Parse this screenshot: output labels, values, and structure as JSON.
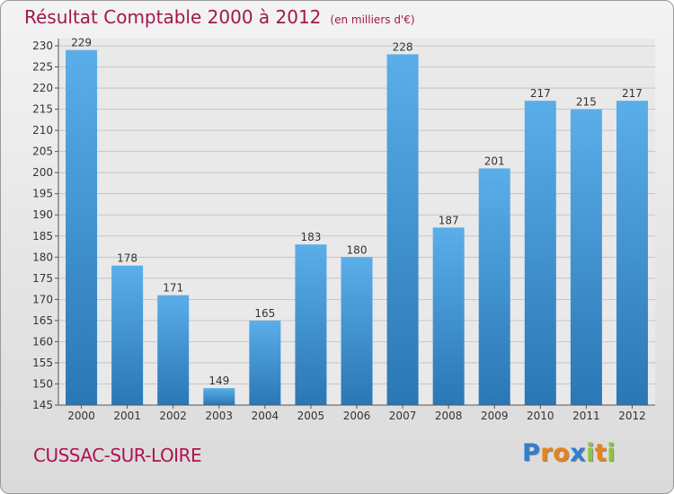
{
  "title": "Résultat Comptable 2000 à 2012",
  "subtitle": "(en milliers d'€)",
  "place": "CUSSAC-SUR-LOIRE",
  "brand": {
    "letters": [
      "P",
      "r",
      "o",
      "x",
      "i",
      "t",
      "i"
    ],
    "colors": [
      "#2e7fd0",
      "#e8831a",
      "#e8831a",
      "#2e7fd0",
      "#8cc63f",
      "#e8831a",
      "#8cc63f"
    ]
  },
  "colors": {
    "title": "#a0174f",
    "bar_light": "#5aaee9",
    "bar_dark": "#2a77b5"
  },
  "chart_data": {
    "type": "bar",
    "categories": [
      "2000",
      "2001",
      "2002",
      "2003",
      "2004",
      "2005",
      "2006",
      "2007",
      "2008",
      "2009",
      "2010",
      "2011",
      "2012"
    ],
    "values": [
      229,
      178,
      171,
      149,
      165,
      183,
      180,
      228,
      187,
      201,
      217,
      215,
      217
    ],
    "ylim": [
      145,
      230
    ],
    "yticks": [
      145,
      150,
      155,
      160,
      165,
      170,
      175,
      180,
      185,
      190,
      195,
      200,
      205,
      210,
      215,
      220,
      225,
      230
    ],
    "grid": true
  }
}
